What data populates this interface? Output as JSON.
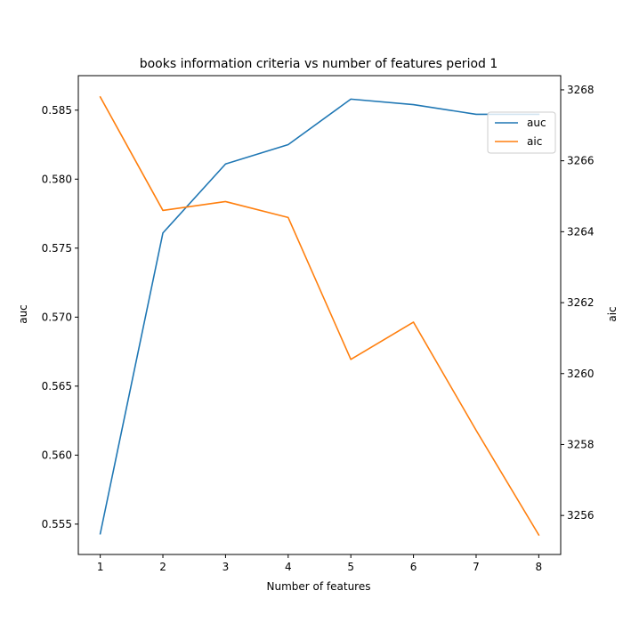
{
  "chart_data": {
    "type": "line",
    "title": "books information criteria vs number of features period 1",
    "xlabel": "Number of features",
    "ylabel_left": "auc",
    "ylabel_right": "aic",
    "x": [
      1,
      2,
      3,
      4,
      5,
      6,
      7,
      8
    ],
    "x_ticks": [
      "1",
      "2",
      "3",
      "4",
      "5",
      "6",
      "7",
      "8"
    ],
    "xlim": [
      0.65,
      8.35
    ],
    "y_left_lim": [
      0.5528,
      0.5875
    ],
    "y_left_ticks": [
      "0.555",
      "0.560",
      "0.565",
      "0.570",
      "0.575",
      "0.580",
      "0.585"
    ],
    "y_right_lim": [
      3254.9,
      3268.4
    ],
    "y_right_ticks": [
      "3256",
      "3258",
      "3260",
      "3262",
      "3264",
      "3266",
      "3268"
    ],
    "grid": false,
    "legend_position": "upper right",
    "series": [
      {
        "name": "auc",
        "axis": "left",
        "color": "#1f77b4",
        "values": [
          0.5543,
          0.5761,
          0.5811,
          0.5825,
          0.5858,
          0.5854,
          0.5847,
          0.5847
        ]
      },
      {
        "name": "aic",
        "axis": "right",
        "color": "#ff7f0e",
        "values": [
          3267.8,
          3264.6,
          3264.85,
          3264.4,
          3260.4,
          3261.45,
          3258.4,
          3255.45
        ]
      }
    ]
  }
}
